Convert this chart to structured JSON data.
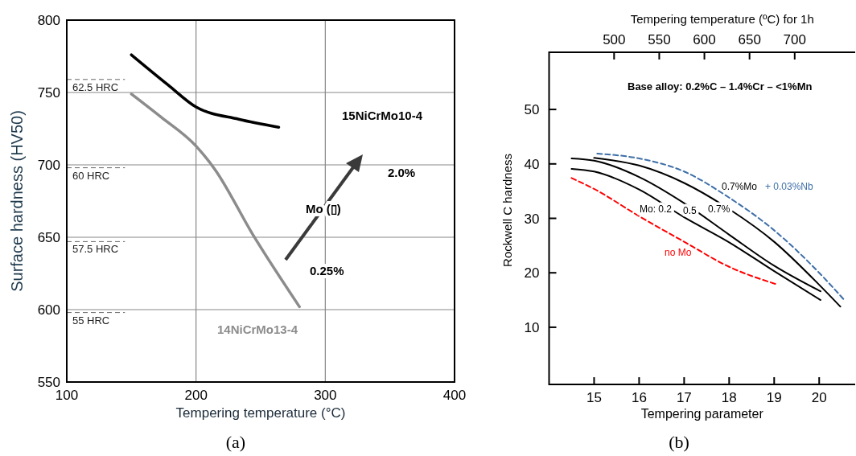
{
  "chart_data": [
    {
      "type": "line",
      "xlabel": "Tempering temperature (°C)",
      "ylabel": "Surface hardness (HV50)",
      "xlim": [
        100,
        400
      ],
      "ylim": [
        550,
        800
      ],
      "xticks": [
        100,
        200,
        300,
        400
      ],
      "yticks": [
        550,
        600,
        650,
        700,
        750,
        800
      ],
      "grid": true,
      "series": [
        {
          "name": "15NiCrMo10-4",
          "color": "#000000",
          "x": [
            150,
            178,
            200,
            233,
            264
          ],
          "values": [
            776,
            755.5,
            740,
            731.5,
            726
          ]
        },
        {
          "name": "14NiCrMo13-4",
          "color": "#8c8c8c",
          "x": [
            150,
            173,
            200,
            214.5,
            244.5,
            280
          ],
          "values": [
            749,
            733,
            713,
            697,
            651,
            602
          ]
        }
      ],
      "ref_lines": [
        {
          "axis": "y",
          "value": 759,
          "label": "62.5 HRC",
          "line_style": "dashed"
        },
        {
          "axis": "y",
          "value": 698,
          "label": "60 HRC",
          "line_style": "dashed"
        },
        {
          "axis": "y",
          "value": 647,
          "label": "57.5 HRC",
          "line_style": "dashed"
        },
        {
          "axis": "y",
          "value": 598,
          "label": "55 HRC",
          "line_style": "dashed"
        }
      ],
      "annotations": [
        "Mo (▯)",
        "2.0%",
        "0.25%",
        "(a)"
      ]
    },
    {
      "type": "line",
      "xlabel": "Tempering parameter",
      "ylabel": "Rockwell C hardness",
      "x2label": "Tempering temperature (ºC) for 1h",
      "xlim": [
        14,
        20.8
      ],
      "ylim": [
        -0.5,
        60.5
      ],
      "xticks": [
        15,
        16,
        17,
        18,
        19,
        20
      ],
      "yticks": [
        10,
        20,
        30,
        40,
        50
      ],
      "x2lim": [
        428,
        767
      ],
      "x2ticks": [
        500,
        550,
        600,
        650,
        700
      ],
      "series": [
        {
          "name": "+ 0.03%Nb",
          "color": "#3f6fa8",
          "line_style": "dashed",
          "x": [
            15.07,
            16,
            17,
            18,
            19,
            20,
            20.58
          ],
          "values": [
            41.9,
            41,
            38.6,
            33.8,
            27.8,
            20,
            14.8
          ]
        },
        {
          "name": "0.7%",
          "color": "#000000",
          "x": [
            15,
            16,
            17,
            18,
            19,
            20,
            20.47
          ],
          "values": [
            41.1,
            39.7,
            36.5,
            31.7,
            25.7,
            17.8,
            13.8
          ]
        },
        {
          "name": "0.5",
          "color": "#000000",
          "x": [
            14.5,
            15,
            16,
            17,
            18,
            19,
            20.03
          ],
          "values": [
            41,
            40.6,
            37.6,
            32.8,
            27,
            21.3,
            16.6
          ]
        },
        {
          "name": "Mo: 0.2",
          "color": "#000000",
          "x": [
            14.5,
            15,
            16,
            17,
            18,
            19,
            20.03
          ],
          "values": [
            39.1,
            38.6,
            35.3,
            30.2,
            25.6,
            20.3,
            15
          ]
        },
        {
          "name": "no Mo",
          "color": "#ff0000",
          "line_style": "dashed",
          "x": [
            14.5,
            15,
            16,
            17,
            18,
            19.05
          ],
          "values": [
            37.4,
            35.4,
            30.4,
            25.7,
            21.1,
            17.9
          ]
        }
      ],
      "annotations": [
        "Base alloy: 0.2%C – 1.4%Cr – <1%Mn",
        "0.7%Mo",
        "(b)"
      ]
    }
  ]
}
